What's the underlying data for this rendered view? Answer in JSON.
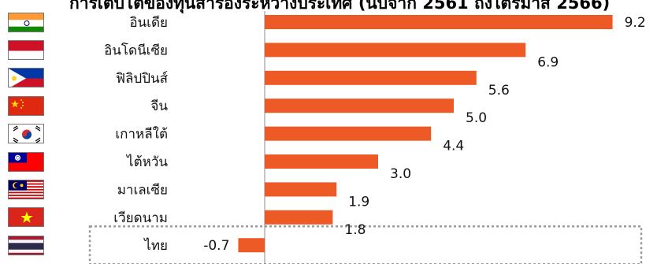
{
  "title": "การเติบโตของทุนสำรองระหว่างประเทศ (นับจาก 2561 ถึงไตรมาส 2566)",
  "chart_data": {
    "type": "bar",
    "orientation": "horizontal",
    "categories": [
      "อินเดีย",
      "อินโดนีเซีย",
      "ฟิลิปปินส์",
      "จีน",
      "เกาหลีใต้",
      "ไต้หวัน",
      "มาเลเซีย",
      "เวียดนาม",
      "ไทย"
    ],
    "values": [
      9.2,
      6.9,
      5.6,
      5.0,
      4.4,
      3.0,
      1.9,
      1.8,
      -0.7
    ],
    "value_labels": [
      "9.2",
      "6.9",
      "5.6",
      "5.0",
      "4.4",
      "3.0",
      "1.9",
      "1.8",
      "-0.7"
    ],
    "flags": [
      "india-flag",
      "indonesia-flag",
      "philippines-flag",
      "china-flag",
      "south-korea-flag",
      "taiwan-flag",
      "malaysia-flag",
      "vietnam-flag",
      "thailand-flag"
    ],
    "bar_color": "#ED5A26",
    "highlight": "ไทย",
    "highlight_border": "dotted gray",
    "xlim": [
      -1.0,
      9.9
    ],
    "xlabel": "",
    "ylabel": "",
    "grid": false,
    "legend": "none"
  }
}
